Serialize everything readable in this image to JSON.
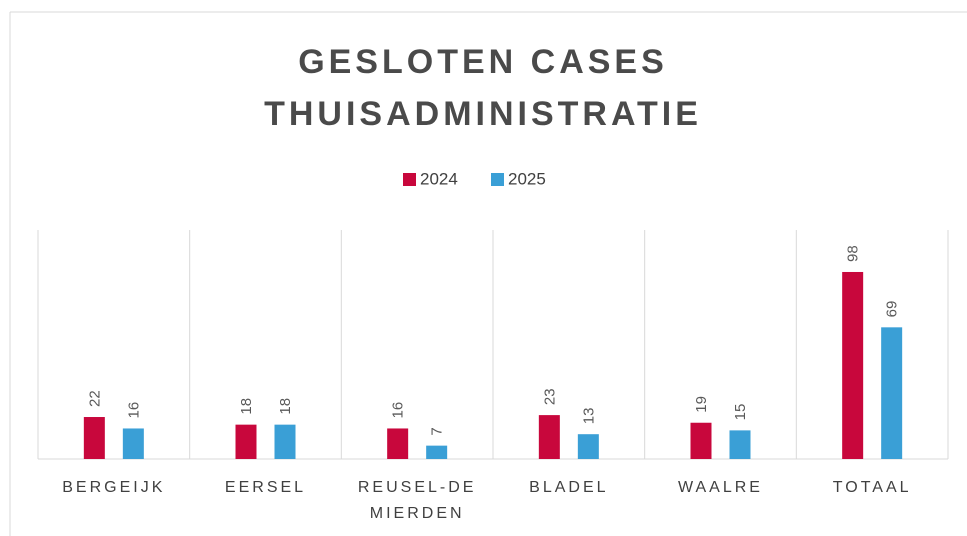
{
  "chart_data": {
    "type": "bar",
    "title": [
      "GESLOTEN CASES",
      "THUISADMINISTRATIE"
    ],
    "categories": [
      "BERGEIJK",
      "EERSEL",
      "REUSEL-DE MIERDEN",
      "BLADEL",
      "WAALRE",
      "TOTAAL"
    ],
    "series": [
      {
        "name": "2024",
        "color": "#c8073c",
        "values": [
          22,
          18,
          16,
          23,
          19,
          98
        ]
      },
      {
        "name": "2025",
        "color": "#3a9fd6",
        "values": [
          16,
          18,
          7,
          13,
          15,
          69
        ]
      }
    ],
    "ylim": [
      0,
      120
    ],
    "legend": "top"
  }
}
